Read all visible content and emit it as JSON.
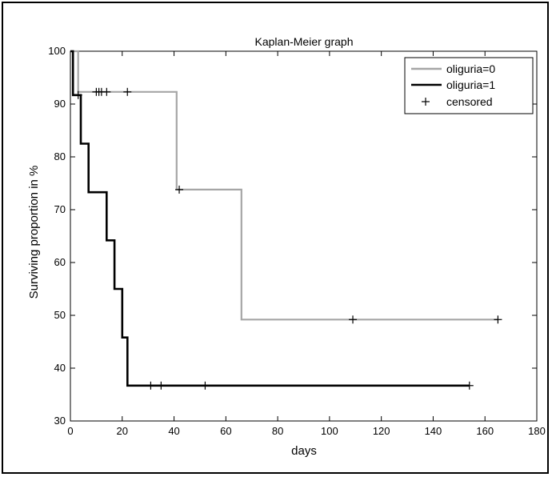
{
  "chart_data": {
    "type": "line",
    "subtype": "step",
    "title": "Kaplan-Meier graph",
    "xlabel": "days",
    "ylabel": "Surviving proportion in %",
    "xlim": [
      0,
      180
    ],
    "ylim": [
      30,
      100
    ],
    "xticks": [
      0,
      20,
      40,
      60,
      80,
      100,
      120,
      140,
      160,
      180
    ],
    "yticks": [
      30,
      40,
      50,
      60,
      70,
      80,
      90,
      100
    ],
    "grid": false,
    "legend_position": "top-right",
    "series": [
      {
        "name": "oliguria=0",
        "color": "#a6a6a6",
        "steps": [
          [
            0,
            100
          ],
          [
            3,
            100
          ],
          [
            3,
            92.3
          ],
          [
            41,
            92.3
          ],
          [
            41,
            73.8
          ],
          [
            66,
            73.8
          ],
          [
            66,
            49.2
          ],
          [
            165,
            49.2
          ]
        ],
        "censored": [
          [
            10,
            92.3
          ],
          [
            11,
            92.3
          ],
          [
            12,
            92.3
          ],
          [
            14,
            92.3
          ],
          [
            22,
            92.3
          ],
          [
            42,
            73.8
          ],
          [
            109,
            49.2
          ],
          [
            165,
            49.2
          ]
        ]
      },
      {
        "name": "oliguria=1",
        "color": "#000000",
        "steps": [
          [
            0,
            100
          ],
          [
            1,
            100
          ],
          [
            1,
            91.7
          ],
          [
            4,
            91.7
          ],
          [
            4,
            82.5
          ],
          [
            7,
            82.5
          ],
          [
            7,
            73.3
          ],
          [
            14,
            73.3
          ],
          [
            14,
            64.2
          ],
          [
            17,
            64.2
          ],
          [
            17,
            55
          ],
          [
            20,
            55
          ],
          [
            20,
            45.8
          ],
          [
            22,
            45.8
          ],
          [
            22,
            36.7
          ],
          [
            154,
            36.7
          ]
        ],
        "censored": [
          [
            3,
            91.7
          ],
          [
            31,
            36.7
          ],
          [
            35,
            36.7
          ],
          [
            52,
            36.7
          ],
          [
            154,
            36.7
          ]
        ]
      }
    ],
    "legend": [
      {
        "label": "oliguria=0",
        "marker": "line",
        "color": "#a6a6a6"
      },
      {
        "label": "oliguria=1",
        "marker": "line",
        "color": "#000000"
      },
      {
        "label": "censored",
        "marker": "+",
        "color": "#000000"
      }
    ]
  }
}
